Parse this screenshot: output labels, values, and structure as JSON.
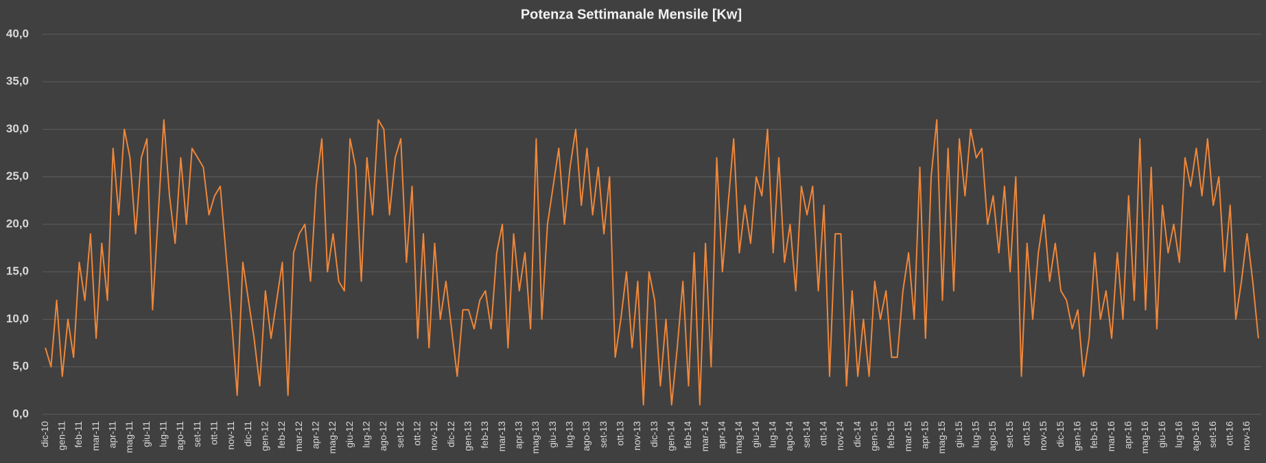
{
  "chart_data": {
    "type": "line",
    "title": "Potenza Settimanale Mensile [Kw]",
    "categories": [
      "dic-10",
      null,
      null,
      "gen-11",
      null,
      null,
      "feb-11",
      null,
      null,
      "mar-11",
      null,
      null,
      "apr-11",
      null,
      null,
      "mag-11",
      null,
      null,
      "giu-11",
      null,
      null,
      "lug-11",
      null,
      null,
      "ago-11",
      null,
      null,
      "set-11",
      null,
      null,
      "ott-11",
      null,
      null,
      "nov-11",
      null,
      null,
      "dic-11",
      null,
      null,
      "gen-12",
      null,
      null,
      "feb-12",
      null,
      null,
      "mar-12",
      null,
      null,
      "apr-12",
      null,
      null,
      "mag-12",
      null,
      null,
      "giu-12",
      null,
      null,
      "lug-12",
      null,
      null,
      "ago-12",
      null,
      null,
      "set-12",
      null,
      null,
      "ott-12",
      null,
      null,
      "nov-12",
      null,
      null,
      "dic-12",
      null,
      null,
      "gen-13",
      null,
      null,
      "feb-13",
      null,
      null,
      "mar-13",
      null,
      null,
      "apr-13",
      null,
      null,
      "mag-13",
      null,
      null,
      "giu-13",
      null,
      null,
      "lug-13",
      null,
      null,
      "ago-13",
      null,
      null,
      "set-13",
      null,
      null,
      "ott-13",
      null,
      null,
      "nov-13",
      null,
      null,
      "dic-13",
      null,
      null,
      "gen-14",
      null,
      null,
      "feb-14",
      null,
      null,
      "mar-14",
      null,
      null,
      "apr-14",
      null,
      null,
      "mag-14",
      null,
      null,
      "giu-14",
      null,
      null,
      "lug-14",
      null,
      null,
      "ago-14",
      null,
      null,
      "set-14",
      null,
      null,
      "ott-14",
      null,
      null,
      "nov-14",
      null,
      null,
      "dic-14",
      null,
      null,
      "gen-15",
      null,
      null,
      "feb-15",
      null,
      null,
      "mar-15",
      null,
      null,
      "apr-15",
      null,
      null,
      "mag-15",
      null,
      null,
      "giu-15",
      null,
      null,
      "lug-15",
      null,
      null,
      "ago-15",
      null,
      null,
      "set-15",
      null,
      null,
      "ott-15",
      null,
      null,
      "nov-15",
      null,
      null,
      "dic-15",
      null,
      null,
      "gen-16",
      null,
      null,
      "feb-16",
      null,
      null,
      "mar-16",
      null,
      null,
      "apr-16",
      null,
      null,
      "mag-16",
      null,
      null,
      "giu-16",
      null,
      null,
      "lug-16",
      null,
      null,
      "ago-16",
      null,
      null,
      "set-16",
      null,
      null,
      "ott-16",
      null,
      null,
      "nov-16",
      null,
      null
    ],
    "series": [
      {
        "color": "#f0873a",
        "values": [
          7,
          5,
          12,
          4,
          10,
          6,
          16,
          12,
          19,
          8,
          18,
          12,
          28,
          21,
          30,
          27,
          19,
          27,
          29,
          11,
          21,
          31,
          23,
          18,
          27,
          20,
          28,
          27,
          26,
          21,
          23,
          24,
          17,
          10,
          2,
          16,
          12,
          8,
          3,
          13,
          8,
          12,
          16,
          2,
          17,
          19,
          20,
          14,
          24,
          29,
          15,
          19,
          14,
          13,
          29,
          26,
          14,
          27,
          21,
          31,
          30,
          21,
          27,
          29,
          16,
          24,
          8,
          19,
          7,
          18,
          10,
          14,
          9,
          4,
          11,
          11,
          9,
          12,
          13,
          9,
          17,
          20,
          7,
          19,
          13,
          17,
          9,
          29,
          10,
          20,
          24,
          28,
          20,
          26,
          30,
          22,
          28,
          21,
          26,
          19,
          25,
          6,
          10,
          15,
          7,
          14,
          1,
          15,
          12,
          3,
          10,
          1,
          7,
          14,
          3,
          17,
          1,
          18,
          5,
          27,
          15,
          22,
          29,
          17,
          22,
          18,
          25,
          23,
          30,
          17,
          27,
          16,
          20,
          13,
          24,
          21,
          24,
          13,
          22,
          4,
          19,
          19,
          3,
          13,
          4,
          10,
          4,
          14,
          10,
          13,
          6,
          6,
          13,
          17,
          10,
          26,
          8,
          25,
          31,
          12,
          28,
          13,
          29,
          23,
          30,
          27,
          28,
          20,
          23,
          17,
          24,
          15,
          25,
          4,
          18,
          10,
          17,
          21,
          14,
          18,
          13,
          12,
          9,
          11,
          4,
          8,
          17,
          10,
          13,
          8,
          17,
          10,
          23,
          12,
          29,
          11,
          26,
          9,
          22,
          17,
          20,
          16,
          27,
          24,
          28,
          23,
          29,
          22,
          25,
          15,
          22,
          10,
          14,
          19,
          14,
          8
        ]
      }
    ],
    "ylim": [
      0,
      40
    ],
    "yticks": [
      {
        "value": 0,
        "label": "0,0"
      },
      {
        "value": 5,
        "label": "5,0"
      },
      {
        "value": 10,
        "label": "10,0"
      },
      {
        "value": 15,
        "label": "15,0"
      },
      {
        "value": 20,
        "label": "20,0"
      },
      {
        "value": 25,
        "label": "25,0"
      },
      {
        "value": 30,
        "label": "30,0"
      },
      {
        "value": 35,
        "label": "35,0"
      },
      {
        "value": 40,
        "label": "40,0"
      }
    ],
    "grid": true
  }
}
